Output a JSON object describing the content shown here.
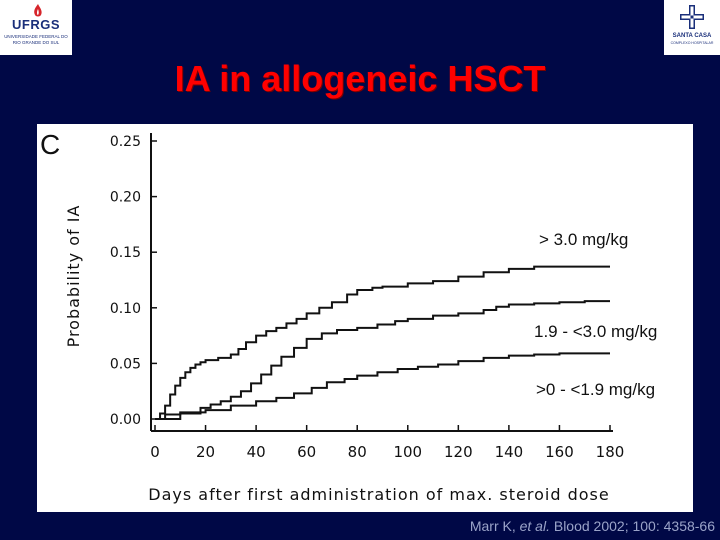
{
  "header": {
    "left_logo": {
      "brand": "UFRGS",
      "subtitle": "UNIVERSIDADE FEDERAL DO RIO GRANDE DO SUL"
    },
    "right_logo": {
      "name": "SANTA CASA",
      "tagline": "COMPLEXO HOSPITALAR"
    },
    "title": "IA in allogeneic HSCT"
  },
  "citation": {
    "authors": "Marr K, ",
    "etal": "et al.",
    "rest": " Blood 2002; 100: 4358-66"
  },
  "colors": {
    "background": "#000846",
    "title": "#ff0000",
    "panel": "#ffffff",
    "ink": "#111111",
    "citation": "#9aa3c8"
  },
  "chart_data": {
    "type": "line",
    "panel_label": "C",
    "xlabel": "Days after first administration of max. steroid dose",
    "ylabel": "Probability of IA",
    "xlim": [
      0,
      180
    ],
    "ylim": [
      0,
      0.25
    ],
    "xticks": [
      0,
      20,
      40,
      60,
      80,
      100,
      120,
      140,
      160,
      180
    ],
    "xtick_labels": [
      "0",
      "20",
      "40",
      "60",
      "80",
      "100",
      "120",
      "140",
      "160",
      "180"
    ],
    "yticks": [
      0,
      0.05,
      0.1,
      0.15,
      0.2,
      0.25
    ],
    "ytick_labels": [
      "0.00",
      "0.05",
      "0.10",
      "0.15",
      "0.20",
      "0.25"
    ],
    "grid": false,
    "step": true,
    "series": [
      {
        "name": "> 3.0 mg/kg",
        "x": [
          0,
          2,
          4,
          6,
          8,
          10,
          12,
          14,
          16,
          18,
          20,
          25,
          30,
          33,
          36,
          40,
          44,
          48,
          52,
          56,
          60,
          65,
          70,
          76,
          80,
          86,
          90,
          100,
          110,
          120,
          130,
          140,
          150,
          180
        ],
        "y": [
          0,
          0.005,
          0.012,
          0.022,
          0.03,
          0.037,
          0.042,
          0.046,
          0.049,
          0.051,
          0.053,
          0.055,
          0.058,
          0.063,
          0.069,
          0.075,
          0.079,
          0.082,
          0.086,
          0.09,
          0.095,
          0.1,
          0.105,
          0.112,
          0.116,
          0.118,
          0.119,
          0.122,
          0.124,
          0.128,
          0.132,
          0.135,
          0.137,
          0.137
        ]
      },
      {
        "name": "1.9 - <3.0 mg/kg",
        "x": [
          0,
          10,
          18,
          22,
          26,
          30,
          34,
          38,
          42,
          46,
          50,
          55,
          60,
          66,
          72,
          80,
          88,
          95,
          100,
          110,
          120,
          130,
          135,
          140,
          150,
          160,
          170,
          180
        ],
        "y": [
          0,
          0.005,
          0.01,
          0.013,
          0.016,
          0.02,
          0.025,
          0.032,
          0.04,
          0.048,
          0.056,
          0.064,
          0.072,
          0.077,
          0.08,
          0.082,
          0.085,
          0.088,
          0.09,
          0.093,
          0.095,
          0.098,
          0.101,
          0.103,
          0.104,
          0.105,
          0.106,
          0.106
        ]
      },
      {
        "name": ">0 - <1.9 mg/kg",
        "x": [
          0,
          4,
          10,
          20,
          30,
          40,
          48,
          55,
          62,
          68,
          75,
          80,
          88,
          96,
          104,
          112,
          120,
          130,
          140,
          150,
          160,
          180
        ],
        "y": [
          0,
          0.004,
          0.006,
          0.008,
          0.012,
          0.016,
          0.019,
          0.023,
          0.028,
          0.033,
          0.036,
          0.039,
          0.042,
          0.045,
          0.047,
          0.049,
          0.052,
          0.055,
          0.057,
          0.058,
          0.059,
          0.059
        ]
      }
    ]
  }
}
